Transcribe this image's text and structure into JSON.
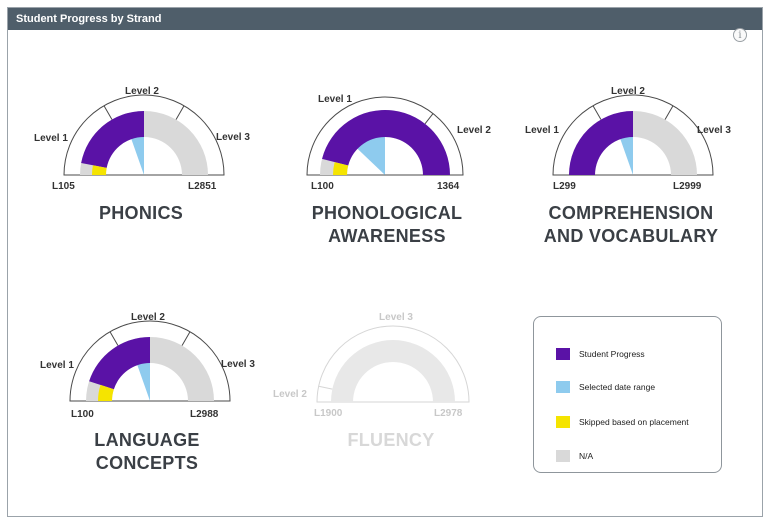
{
  "header": {
    "title": "Student Progress by Strand"
  },
  "colors": {
    "progress": "#5a12a6",
    "selected": "#8ecbee",
    "skipped": "#f5e400",
    "na": "#d9d9d9",
    "header_bg": "#4f5e6a"
  },
  "strands": [
    {
      "title": [
        "PHONICS"
      ],
      "levels": [
        "Level 1",
        "Level 2",
        "Level 3"
      ],
      "range": [
        "L105",
        "L2851"
      ],
      "skipped_fraction": 0.06,
      "progress_fraction": 0.5,
      "selected_fraction": 0.33,
      "enabled": true
    },
    {
      "title": [
        "PHONOLOGICAL",
        "AWARENESS"
      ],
      "levels": [
        "Level 1",
        "Level 2"
      ],
      "range": [
        "L100",
        "1364"
      ],
      "skipped_fraction": 0.08,
      "progress_fraction": 1.0,
      "selected_fraction": 0.48,
      "enabled": true
    },
    {
      "title": [
        "COMPREHENSION",
        "AND VOCABULARY"
      ],
      "levels": [
        "Level 1",
        "Level 2",
        "Level 3"
      ],
      "range": [
        "L299",
        "L2999"
      ],
      "skipped_fraction": 0.0,
      "progress_fraction": 0.5,
      "selected_fraction": 0.33,
      "enabled": true
    },
    {
      "title": [
        "LANGUAGE",
        "CONCEPTS"
      ],
      "levels": [
        "Level 1",
        "Level 2",
        "Level 3"
      ],
      "range": [
        "L100",
        "L2988"
      ],
      "skipped_fraction": 0.1,
      "progress_fraction": 0.5,
      "selected_fraction": 0.33,
      "enabled": true
    },
    {
      "title": [
        "FLUENCY"
      ],
      "levels": [
        "Level 2",
        "Level 3"
      ],
      "range": [
        "L1900",
        "L2978"
      ],
      "skipped_fraction": 0.0,
      "progress_fraction": 0.0,
      "selected_fraction": 0.0,
      "enabled": false
    }
  ],
  "legend": {
    "items": [
      {
        "label": "Student Progress",
        "color": "#5a12a6"
      },
      {
        "label": "Selected date range",
        "color": "#8ecbee"
      },
      {
        "label": "Skipped based on placement",
        "color": "#f5e400"
      },
      {
        "label": "N/A",
        "color": "#d9d9d9"
      }
    ]
  }
}
